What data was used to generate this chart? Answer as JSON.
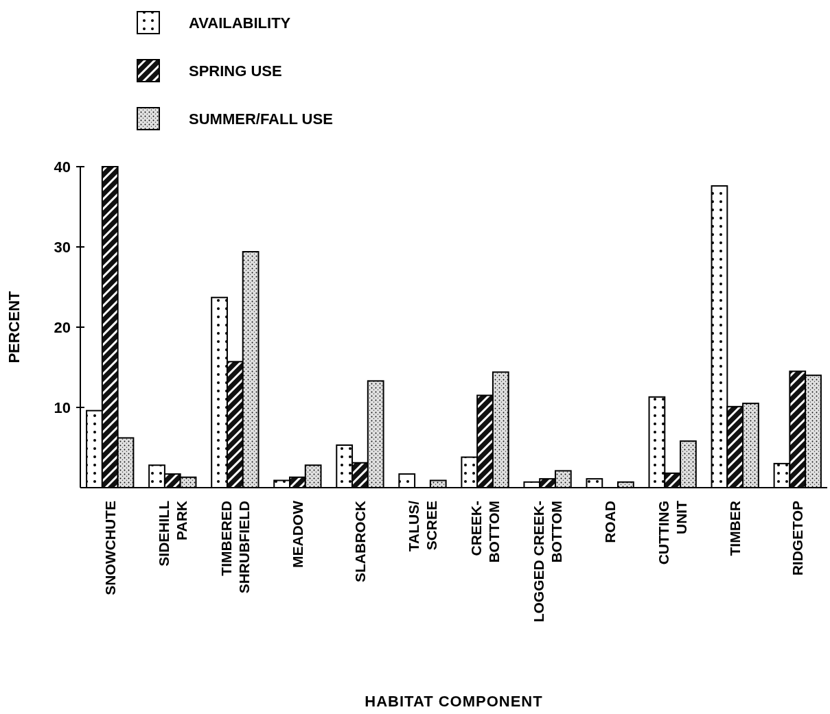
{
  "chart_data": {
    "type": "bar",
    "xlabel": "HABITAT COMPONENT",
    "ylabel": "PERCENT",
    "categories": [
      "SNOWCHUTE",
      "SIDEHILL\nPARK",
      "TIMBERED\nSHRUBFIELD",
      "MEADOW",
      "SLABROCK",
      "TALUS/\nSCREE",
      "CREEK-\nBOTTOM",
      "LOGGED CREEK-\nBOTTOM",
      "ROAD",
      "CUTTING\nUNIT",
      "TIMBER",
      "RIDGETOP"
    ],
    "series": [
      {
        "name": "AVAILABILITY",
        "color": "#ffffff",
        "values": [
          9.6,
          2.8,
          23.7,
          0.9,
          5.3,
          1.7,
          3.8,
          0.7,
          1.1,
          11.3,
          37.6,
          3.0
        ]
      },
      {
        "name": "SPRING USE",
        "color": "#111111",
        "values": [
          40,
          1.7,
          15.7,
          1.3,
          3.1,
          null,
          11.5,
          1.1,
          null,
          1.8,
          10.1,
          14.5
        ]
      },
      {
        "name": "SUMMER/FALL USE",
        "color": "#e0e0e0",
        "values": [
          6.2,
          1.3,
          29.4,
          2.8,
          13.3,
          0.9,
          14.4,
          2.1,
          0.7,
          5.8,
          10.5,
          14.0
        ]
      }
    ],
    "ylim": [
      0,
      40
    ],
    "yticks": [
      10,
      20,
      30,
      40
    ],
    "grid": false,
    "legend": "top left"
  }
}
